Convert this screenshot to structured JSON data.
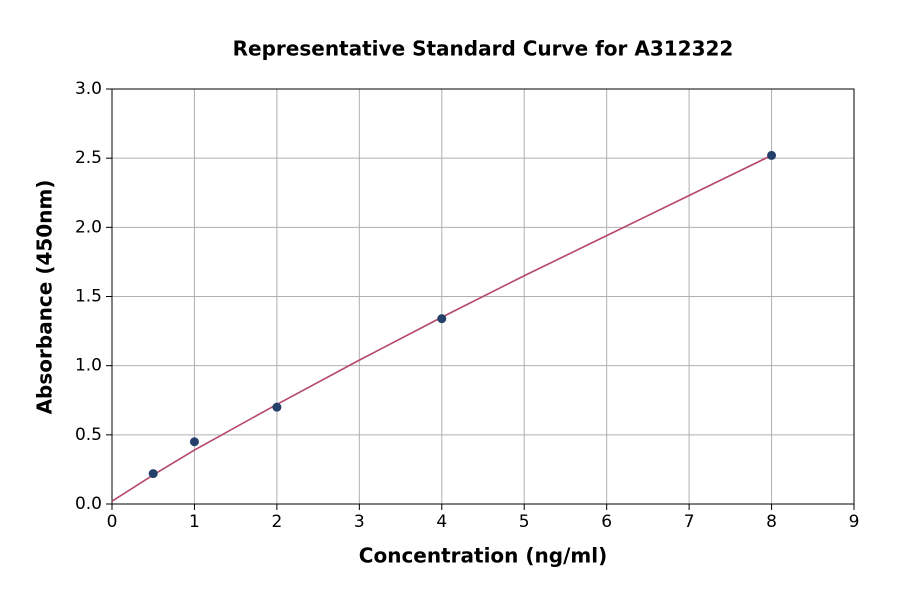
{
  "chart_data": {
    "type": "scatter",
    "title": "Representative Standard Curve for A312322",
    "x_label": "Concentration (ng/ml)",
    "y_label": "Absorbance (450nm)",
    "xlim": [
      0,
      9
    ],
    "ylim": [
      0,
      3
    ],
    "xticks": [
      0,
      1,
      2,
      3,
      4,
      5,
      6,
      7,
      8,
      9
    ],
    "yticks": [
      {
        "value": 0,
        "label": "0.0"
      },
      0.5,
      {
        "value": 1,
        "label": "1.0"
      },
      1.5,
      {
        "value": 2,
        "label": "2.0"
      },
      2.5,
      {
        "value": 3,
        "label": "3.0"
      }
    ],
    "grid": true,
    "series": [
      {
        "type": "line",
        "color": "#b5476a",
        "x": [
          0,
          0.5,
          1,
          2,
          3,
          4,
          5,
          6,
          7,
          8
        ],
        "values": [
          0.02,
          0.21,
          0.39,
          0.72,
          1.04,
          1.35,
          1.65,
          1.94,
          2.23,
          2.52
        ]
      },
      {
        "type": "scatter",
        "color": "#25406a",
        "x": [
          0.5,
          1,
          2,
          4,
          8
        ],
        "values": [
          0.22,
          0.45,
          0.7,
          1.34,
          2.52
        ]
      }
    ]
  }
}
